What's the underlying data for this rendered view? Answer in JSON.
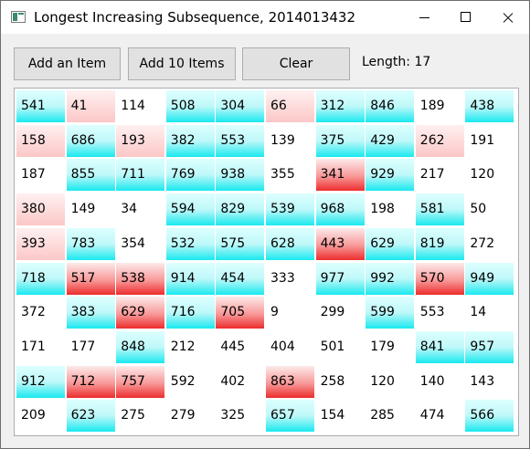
{
  "window": {
    "title": "Longest Increasing Subsequence, 2014013432"
  },
  "toolbar": {
    "add_item_label": "Add an Item",
    "add_10_label": "Add 10 Items",
    "clear_label": "Clear",
    "length_text": "Length: 17"
  },
  "colors": {
    "cyan": "#19e9ef",
    "red": "#ec2d2d",
    "pink": "#fcc7c7"
  },
  "grid": {
    "rows": [
      [
        [
          "541",
          "cyan"
        ],
        [
          "41",
          "pink"
        ],
        [
          "114",
          "white"
        ],
        [
          "508",
          "cyan"
        ],
        [
          "304",
          "cyan"
        ],
        [
          "66",
          "pink"
        ],
        [
          "312",
          "cyan"
        ],
        [
          "846",
          "cyan"
        ],
        [
          "189",
          "white"
        ],
        [
          "438",
          "cyan"
        ]
      ],
      [
        [
          "158",
          "pink"
        ],
        [
          "686",
          "cyan"
        ],
        [
          "193",
          "pink"
        ],
        [
          "382",
          "cyan"
        ],
        [
          "553",
          "cyan"
        ],
        [
          "139",
          "white"
        ],
        [
          "375",
          "cyan"
        ],
        [
          "429",
          "cyan"
        ],
        [
          "262",
          "pink"
        ],
        [
          "191",
          "white"
        ]
      ],
      [
        [
          "187",
          "white"
        ],
        [
          "855",
          "cyan"
        ],
        [
          "711",
          "cyan"
        ],
        [
          "769",
          "cyan"
        ],
        [
          "938",
          "cyan"
        ],
        [
          "355",
          "white"
        ],
        [
          "341",
          "red"
        ],
        [
          "929",
          "cyan"
        ],
        [
          "217",
          "white"
        ],
        [
          "120",
          "white"
        ]
      ],
      [
        [
          "380",
          "pink"
        ],
        [
          "149",
          "white"
        ],
        [
          "34",
          "white"
        ],
        [
          "594",
          "cyan"
        ],
        [
          "829",
          "cyan"
        ],
        [
          "539",
          "cyan"
        ],
        [
          "968",
          "cyan"
        ],
        [
          "198",
          "white"
        ],
        [
          "581",
          "cyan"
        ],
        [
          "50",
          "white"
        ]
      ],
      [
        [
          "393",
          "pink"
        ],
        [
          "783",
          "cyan"
        ],
        [
          "354",
          "white"
        ],
        [
          "532",
          "cyan"
        ],
        [
          "575",
          "cyan"
        ],
        [
          "628",
          "cyan"
        ],
        [
          "443",
          "red"
        ],
        [
          "629",
          "cyan"
        ],
        [
          "819",
          "cyan"
        ],
        [
          "272",
          "white"
        ]
      ],
      [
        [
          "718",
          "cyan"
        ],
        [
          "517",
          "red"
        ],
        [
          "538",
          "red"
        ],
        [
          "914",
          "cyan"
        ],
        [
          "454",
          "cyan"
        ],
        [
          "333",
          "white"
        ],
        [
          "977",
          "cyan"
        ],
        [
          "992",
          "cyan"
        ],
        [
          "570",
          "red"
        ],
        [
          "949",
          "cyan"
        ]
      ],
      [
        [
          "372",
          "white"
        ],
        [
          "383",
          "cyan"
        ],
        [
          "629",
          "red"
        ],
        [
          "716",
          "cyan"
        ],
        [
          "705",
          "red"
        ],
        [
          "9",
          "white"
        ],
        [
          "299",
          "white"
        ],
        [
          "599",
          "cyan"
        ],
        [
          "553",
          "white"
        ],
        [
          "14",
          "white"
        ]
      ],
      [
        [
          "171",
          "white"
        ],
        [
          "177",
          "white"
        ],
        [
          "848",
          "cyan"
        ],
        [
          "212",
          "white"
        ],
        [
          "445",
          "white"
        ],
        [
          "404",
          "white"
        ],
        [
          "501",
          "white"
        ],
        [
          "179",
          "white"
        ],
        [
          "841",
          "cyan"
        ],
        [
          "957",
          "cyan"
        ]
      ],
      [
        [
          "912",
          "cyan"
        ],
        [
          "712",
          "red"
        ],
        [
          "757",
          "red"
        ],
        [
          "592",
          "white"
        ],
        [
          "402",
          "white"
        ],
        [
          "863",
          "red"
        ],
        [
          "258",
          "white"
        ],
        [
          "120",
          "white"
        ],
        [
          "140",
          "white"
        ],
        [
          "143",
          "white"
        ]
      ],
      [
        [
          "209",
          "white"
        ],
        [
          "623",
          "cyan"
        ],
        [
          "275",
          "white"
        ],
        [
          "279",
          "white"
        ],
        [
          "325",
          "white"
        ],
        [
          "657",
          "cyan"
        ],
        [
          "154",
          "white"
        ],
        [
          "285",
          "white"
        ],
        [
          "474",
          "white"
        ],
        [
          "566",
          "cyan"
        ]
      ]
    ]
  }
}
